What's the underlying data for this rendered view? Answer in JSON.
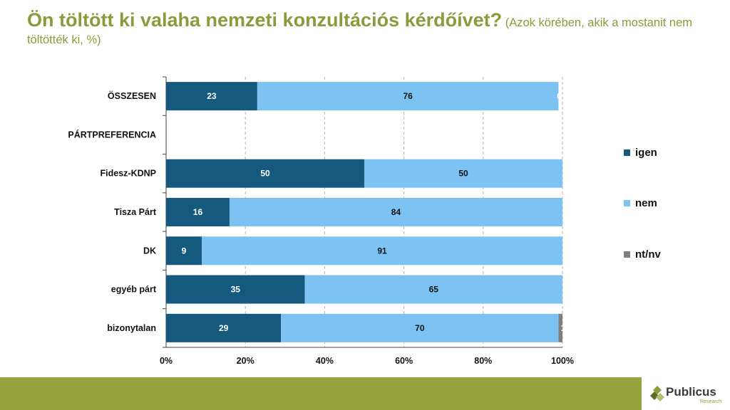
{
  "header": {
    "title_main": "Ön töltött ki valaha nemzeti konzultációs kérdőívet?",
    "title_sub": " (Azok körében, akik a mostanit nem töltötték ki, %)"
  },
  "chart_data": {
    "type": "bar",
    "orientation": "horizontal",
    "stacked": true,
    "categories": [
      "ÖSSZESEN",
      "PÁRTPREFERENCIA",
      "Fidesz-KDNP",
      "Tisza Párt",
      "DK",
      "egyéb párt",
      "bizonytalan"
    ],
    "series": [
      {
        "name": "igen",
        "color": "#155a7e",
        "label_color": "#ffffff",
        "values": [
          23,
          null,
          50,
          16,
          9,
          35,
          29
        ]
      },
      {
        "name": "nem",
        "color": "#7cc2f2",
        "label_color": "#111111",
        "values": [
          76,
          null,
          50,
          84,
          91,
          65,
          70
        ]
      },
      {
        "name": "nt/nv",
        "color": "#7f7f7f",
        "label_color": "#ffffff",
        "values": [
          0,
          null,
          0,
          0,
          0,
          0,
          1
        ]
      }
    ],
    "data_labels": [
      [
        "23",
        "",
        "50",
        "16",
        "9",
        "35",
        "29"
      ],
      [
        "76",
        "",
        "50",
        "84",
        "91",
        "65",
        "70"
      ],
      [
        "0",
        "",
        "",
        "",
        "",
        "",
        "1"
      ]
    ],
    "xlim": [
      0,
      100
    ],
    "x_ticks": [
      "0%",
      "20%",
      "40%",
      "60%",
      "80%",
      "100%"
    ],
    "grid": "vertical dashed",
    "legend_position": "right"
  },
  "legend": {
    "items": [
      "igen",
      "nem",
      "nt/nv"
    ]
  },
  "brand": {
    "name": "Publicus",
    "sub": "Research"
  }
}
